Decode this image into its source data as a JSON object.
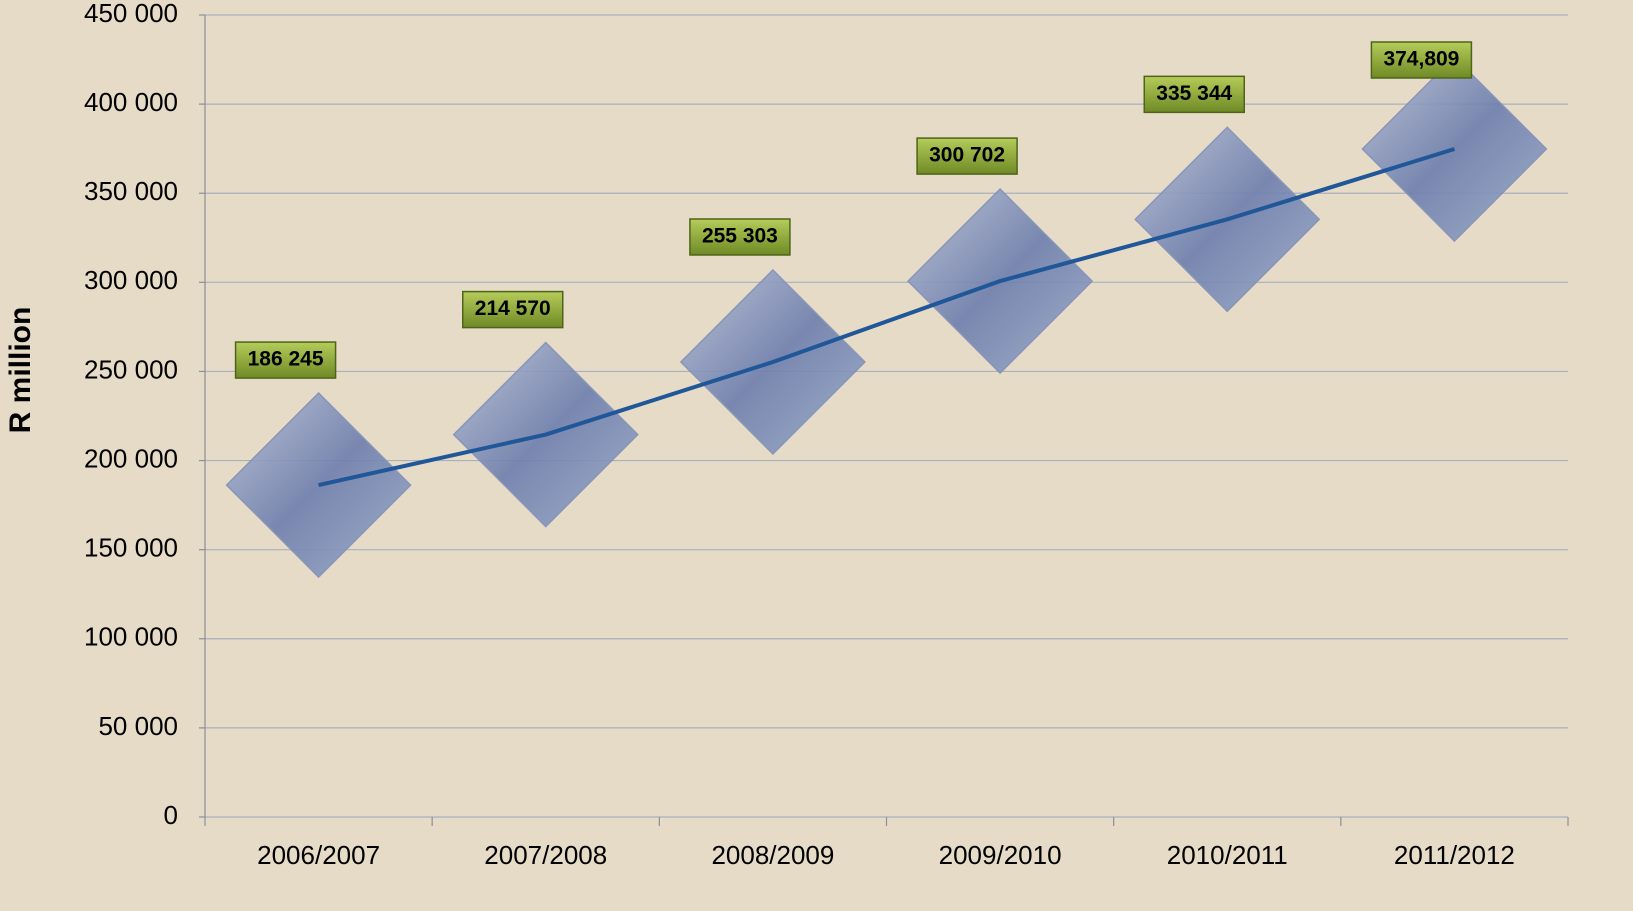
{
  "chart_data": {
    "type": "line",
    "y_label": "R million",
    "categories": [
      "2006/2007",
      "2007/2008",
      "2008/2009",
      "2009/2010",
      "2010/2011",
      "2011/2012"
    ],
    "values": [
      186245,
      214570,
      255303,
      300702,
      335344,
      374809
    ],
    "value_labels": [
      "186 245",
      "214 570",
      "255 303",
      "300 702",
      "335 344",
      "374,809"
    ],
    "color": "#1f5799",
    "marker_color": "#7f8fb8",
    "label_box_color": "#8aa33a",
    "ylim": [
      0,
      450000
    ],
    "yticks": [
      0,
      {
        "value": 50000,
        "label": "50 000"
      },
      {
        "value": 100000,
        "label": "100 000"
      },
      {
        "value": 150000,
        "label": "150 000"
      },
      {
        "value": 200000,
        "label": "200 000"
      },
      {
        "value": 250000,
        "label": "250 000"
      },
      {
        "value": 300000,
        "label": "300 000"
      },
      {
        "value": 350000,
        "label": "350 000"
      },
      {
        "value": 400000,
        "label": "400 000"
      },
      {
        "value": 450000,
        "label": "450 000"
      }
    ],
    "grid": true
  }
}
